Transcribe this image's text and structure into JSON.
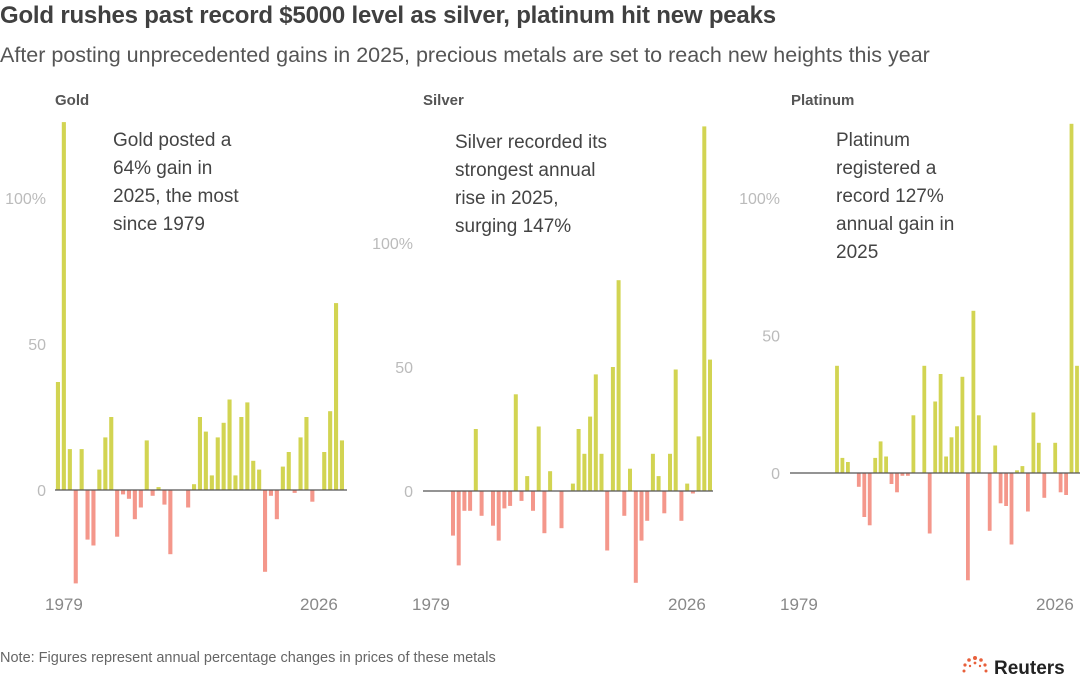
{
  "title": "Gold rushes past record $5000 level as silver, platinum hit new peaks",
  "subtitle": "After posting unprecedented gains in 2025, precious metals are set to reach new heights this year",
  "note": "Note: Figures represent annual percentage changes in prices of these metals",
  "source_logo": "Reuters",
  "colors": {
    "positive": "#d2d452",
    "negative": "#f4978b",
    "axis": "#555555"
  },
  "chart_data": [
    {
      "type": "bar",
      "title": "Gold",
      "annotation": [
        "Gold posted a",
        "64% gain in",
        "2025, the most",
        "since 1979"
      ],
      "x_start": 1978,
      "x_end": 2026,
      "x_tick_labels": [
        "1979",
        "2026"
      ],
      "y_tick_labels": [
        "100%",
        "50",
        "0"
      ],
      "y_ticks": [
        100,
        50,
        0
      ],
      "values": [
        37,
        126,
        14,
        -32,
        14,
        -17,
        -19,
        7,
        18,
        25,
        -16,
        -1.5,
        -3,
        -10,
        -6,
        17,
        -2,
        1,
        -5,
        -22,
        0,
        0,
        -6,
        2,
        25,
        20,
        5,
        18,
        23,
        31,
        5,
        25,
        30,
        10,
        7,
        -28,
        -2,
        -10,
        8,
        13,
        -1,
        18,
        25,
        -4,
        0,
        13,
        27,
        64,
        17
      ]
    },
    {
      "type": "bar",
      "title": "Silver",
      "annotation": [
        "Silver recorded its",
        "strongest annual",
        "rise in 2025,",
        "surging 147%"
      ],
      "x_start": 1981,
      "x_end": 2026,
      "x_tick_labels": [
        "1979",
        "2026"
      ],
      "y_tick_labels": [
        "100%",
        "50",
        "0"
      ],
      "y_ticks": [
        100,
        50,
        0
      ],
      "values": [
        -18,
        -30,
        -8,
        -8,
        25,
        -10,
        0,
        -14,
        -20,
        -7,
        -6,
        39,
        -4,
        6,
        -8,
        26,
        -17,
        8,
        0,
        -15,
        0,
        3,
        25,
        15,
        30,
        47,
        15,
        -24,
        50,
        85,
        -10,
        9,
        -37,
        -20,
        -12,
        15,
        6,
        -9,
        15,
        49,
        -12,
        3,
        -1,
        22,
        147,
        53
      ]
    },
    {
      "type": "bar",
      "title": "Platinum",
      "annotation": [
        "Platinum",
        "registered a",
        "record 127%",
        "annual gain in",
        "2025"
      ],
      "x_start": 1982,
      "x_end": 2026,
      "x_tick_labels": [
        "1979",
        "2026"
      ],
      "y_tick_labels": [
        "100%",
        "50",
        "0"
      ],
      "y_ticks": [
        100,
        50,
        0
      ],
      "values": [
        39,
        5.5,
        4,
        0,
        -5,
        -16,
        -19,
        5.5,
        11.5,
        6,
        -4,
        -7,
        -1,
        -1,
        21,
        0,
        39,
        -22,
        26,
        36,
        6,
        13,
        17,
        35,
        -39,
        59,
        21,
        0,
        -21,
        10,
        -11,
        -12,
        -26,
        1,
        2.5,
        -14,
        22,
        11,
        -9,
        0,
        11,
        -7,
        -8,
        127,
        39
      ]
    }
  ]
}
